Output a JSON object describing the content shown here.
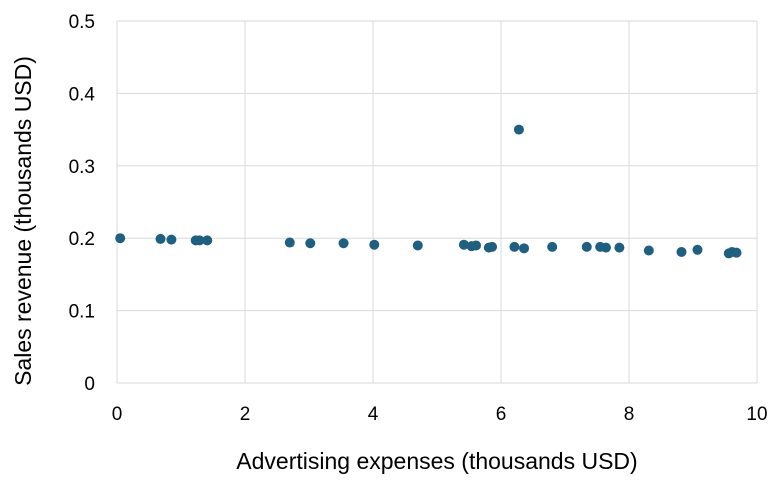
{
  "chart_data": {
    "type": "scatter",
    "title": "",
    "xlabel": "Advertising expenses (thousands USD)",
    "ylabel": "Sales revenue (thousands USD)",
    "xlim": [
      0,
      10
    ],
    "ylim": [
      0,
      0.5
    ],
    "x_ticks": [
      0,
      2,
      4,
      6,
      8,
      10
    ],
    "y_ticks": [
      0,
      0.1,
      0.2,
      0.3,
      0.4,
      0.5
    ],
    "x_tick_labels": [
      "0",
      "2",
      "4",
      "6",
      "8",
      "10"
    ],
    "y_tick_labels": [
      "0",
      "0.1",
      "0.2",
      "0.3",
      "0.4",
      "0.5"
    ],
    "grid": true,
    "legend": "none",
    "marker_color": "#1F5F7F",
    "grid_color": "#D9D9D9",
    "series": [
      {
        "points": [
          [
            0.05,
            0.2
          ],
          [
            0.68,
            0.199
          ],
          [
            0.85,
            0.198
          ],
          [
            1.23,
            0.197
          ],
          [
            1.29,
            0.197
          ],
          [
            1.41,
            0.197
          ],
          [
            2.7,
            0.194
          ],
          [
            3.02,
            0.193
          ],
          [
            3.54,
            0.193
          ],
          [
            4.02,
            0.191
          ],
          [
            4.7,
            0.19
          ],
          [
            5.42,
            0.191
          ],
          [
            5.54,
            0.189
          ],
          [
            5.61,
            0.19
          ],
          [
            5.81,
            0.187
          ],
          [
            5.86,
            0.188
          ],
          [
            6.21,
            0.188
          ],
          [
            6.28,
            0.35
          ],
          [
            6.36,
            0.186
          ],
          [
            6.8,
            0.188
          ],
          [
            7.34,
            0.188
          ],
          [
            7.55,
            0.188
          ],
          [
            7.64,
            0.187
          ],
          [
            7.85,
            0.187
          ],
          [
            8.31,
            0.183
          ],
          [
            8.82,
            0.181
          ],
          [
            9.07,
            0.184
          ],
          [
            9.56,
            0.179
          ],
          [
            9.61,
            0.181
          ],
          [
            9.68,
            0.18
          ]
        ]
      }
    ]
  }
}
